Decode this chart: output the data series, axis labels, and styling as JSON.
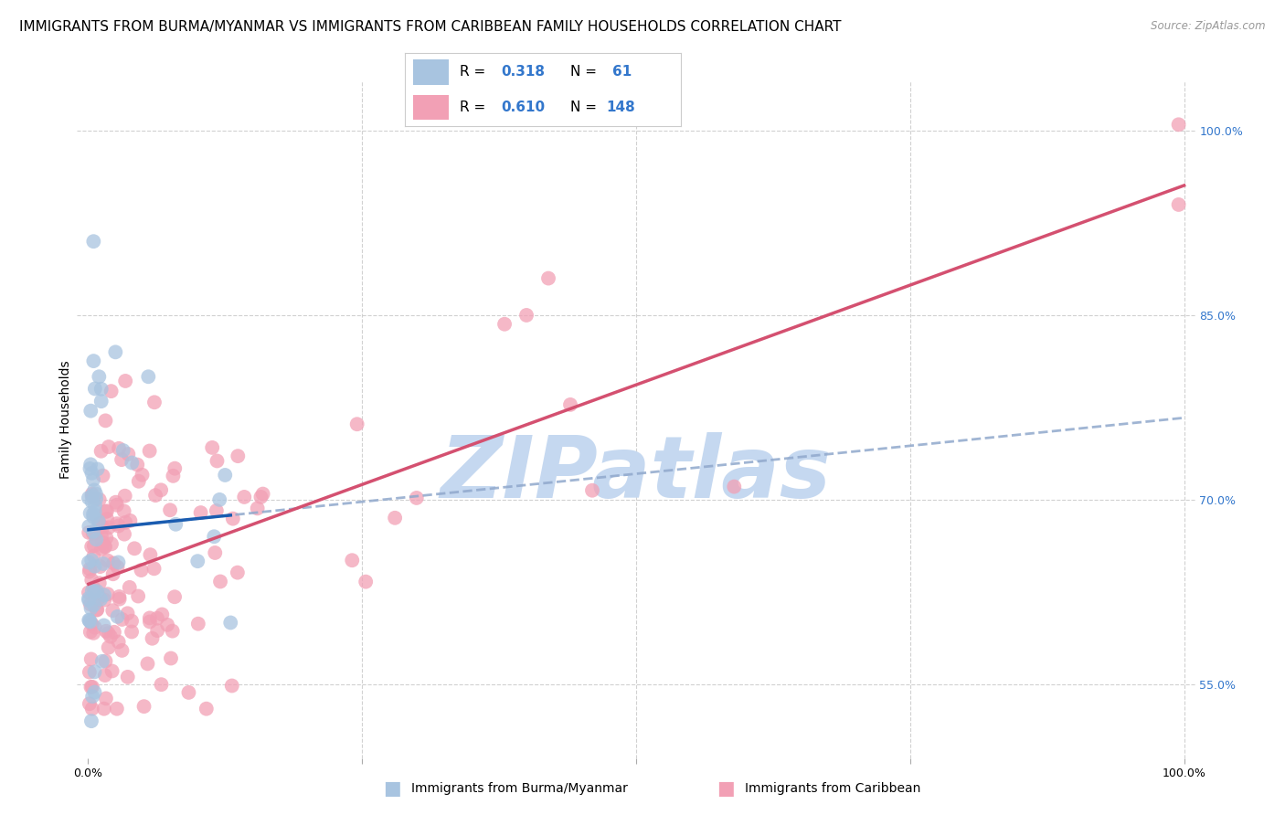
{
  "title": "IMMIGRANTS FROM BURMA/MYANMAR VS IMMIGRANTS FROM CARIBBEAN FAMILY HOUSEHOLDS CORRELATION CHART",
  "source": "Source: ZipAtlas.com",
  "ylabel": "Family Households",
  "right_yticks": [
    55.0,
    70.0,
    85.0,
    100.0
  ],
  "legend_blue_R": "0.318",
  "legend_blue_N": "61",
  "legend_pink_R": "0.610",
  "legend_pink_N": "148",
  "blue_color": "#a8c4e0",
  "pink_color": "#f2a0b5",
  "blue_line_color": "#1a5cb0",
  "pink_line_color": "#d45070",
  "dashed_line_color": "#90a8cc",
  "watermark": "ZIPatlas",
  "watermark_color": "#c5d8f0",
  "background_color": "#ffffff",
  "grid_color": "#cccccc",
  "title_fontsize": 11,
  "axis_label_fontsize": 10,
  "tick_fontsize": 9,
  "right_axis_color": "#3377cc"
}
